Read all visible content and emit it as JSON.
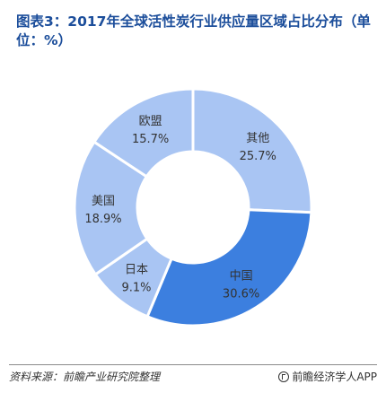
{
  "title": "图表3：2017年全球活性炭行业供应量区域占比分布（单位：%）",
  "footer": {
    "source": "资料来源：前瞻产业研究院整理",
    "brand": "前瞻经济学人APP",
    "brand_icon": "brand-logo-icon"
  },
  "chart_data": {
    "type": "pie",
    "subtype": "donut",
    "title": "图表3：2017年全球活性炭行业供应量区域占比分布（单位：%）",
    "unit": "%",
    "slices": [
      {
        "label": "其他",
        "value": 25.7,
        "value_text": "25.7%",
        "color": "#a9c5f3"
      },
      {
        "label": "中国",
        "value": 30.6,
        "value_text": "30.6%",
        "color": "#3c7fdf"
      },
      {
        "label": "日本",
        "value": 9.1,
        "value_text": "9.1%",
        "color": "#a9c5f3"
      },
      {
        "label": "美国",
        "value": 18.9,
        "value_text": "18.9%",
        "color": "#a9c5f3"
      },
      {
        "label": "欧盟",
        "value": 15.7,
        "value_text": "15.7%",
        "color": "#a9c5f3"
      }
    ],
    "start_angle_deg": 0,
    "direction": "clockwise",
    "highlight": "中国",
    "legend": "none"
  }
}
